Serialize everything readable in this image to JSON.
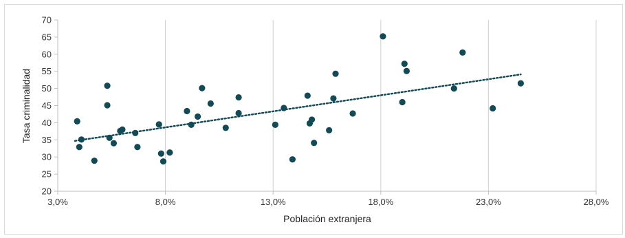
{
  "chart_data": {
    "type": "scatter",
    "title": "",
    "xlabel": "Población extranjera",
    "ylabel": "Tasa criminalidad",
    "xlim": [
      0.03,
      0.28
    ],
    "ylim": [
      20,
      70
    ],
    "x_ticks": [
      0.03,
      0.08,
      0.13,
      0.18,
      0.23,
      0.28
    ],
    "x_tick_labels": [
      "3,0%",
      "8,0%",
      "13,0%",
      "18,0%",
      "23,0%",
      "28,0%"
    ],
    "y_ticks": [
      20,
      25,
      30,
      35,
      40,
      45,
      50,
      55,
      60,
      65,
      70
    ],
    "y_tick_labels": [
      "20",
      "25",
      "30",
      "35",
      "40",
      "45",
      "50",
      "55",
      "60",
      "65",
      "70"
    ],
    "grid": {
      "vertical": true,
      "horizontal": false
    },
    "legend": "none",
    "colors": {
      "points": "#124a55",
      "trendline": "#124a55",
      "grid": "#d0d0d0",
      "axis": "#bfbfbf"
    },
    "series": [
      {
        "points": [
          [
            0.039,
            40.4
          ],
          [
            0.04,
            32.9
          ],
          [
            0.041,
            35.1
          ],
          [
            0.047,
            28.9
          ],
          [
            0.053,
            45.1
          ],
          [
            0.053,
            50.8
          ],
          [
            0.054,
            35.6
          ],
          [
            0.056,
            34.0
          ],
          [
            0.059,
            37.6
          ],
          [
            0.06,
            38.0
          ],
          [
            0.066,
            37.0
          ],
          [
            0.067,
            32.9
          ],
          [
            0.077,
            39.5
          ],
          [
            0.078,
            31.0
          ],
          [
            0.079,
            28.7
          ],
          [
            0.082,
            31.3
          ],
          [
            0.09,
            43.4
          ],
          [
            0.092,
            39.4
          ],
          [
            0.095,
            41.8
          ],
          [
            0.097,
            50.1
          ],
          [
            0.101,
            45.6
          ],
          [
            0.108,
            38.5
          ],
          [
            0.114,
            42.8
          ],
          [
            0.114,
            47.4
          ],
          [
            0.131,
            39.4
          ],
          [
            0.135,
            44.3
          ],
          [
            0.139,
            29.3
          ],
          [
            0.146,
            47.9
          ],
          [
            0.147,
            39.8
          ],
          [
            0.148,
            40.9
          ],
          [
            0.149,
            34.1
          ],
          [
            0.156,
            37.8
          ],
          [
            0.158,
            47.1
          ],
          [
            0.159,
            54.3
          ],
          [
            0.167,
            42.7
          ],
          [
            0.181,
            65.2
          ],
          [
            0.19,
            46.0
          ],
          [
            0.191,
            57.2
          ],
          [
            0.192,
            55.1
          ],
          [
            0.214,
            50.0
          ],
          [
            0.218,
            60.5
          ],
          [
            0.232,
            44.2
          ],
          [
            0.245,
            51.5
          ]
        ]
      }
    ],
    "trendline": {
      "type": "linear",
      "style": "dotted",
      "x": [
        0.038,
        0.245
      ],
      "y": [
        34.7,
        54.1
      ]
    }
  }
}
